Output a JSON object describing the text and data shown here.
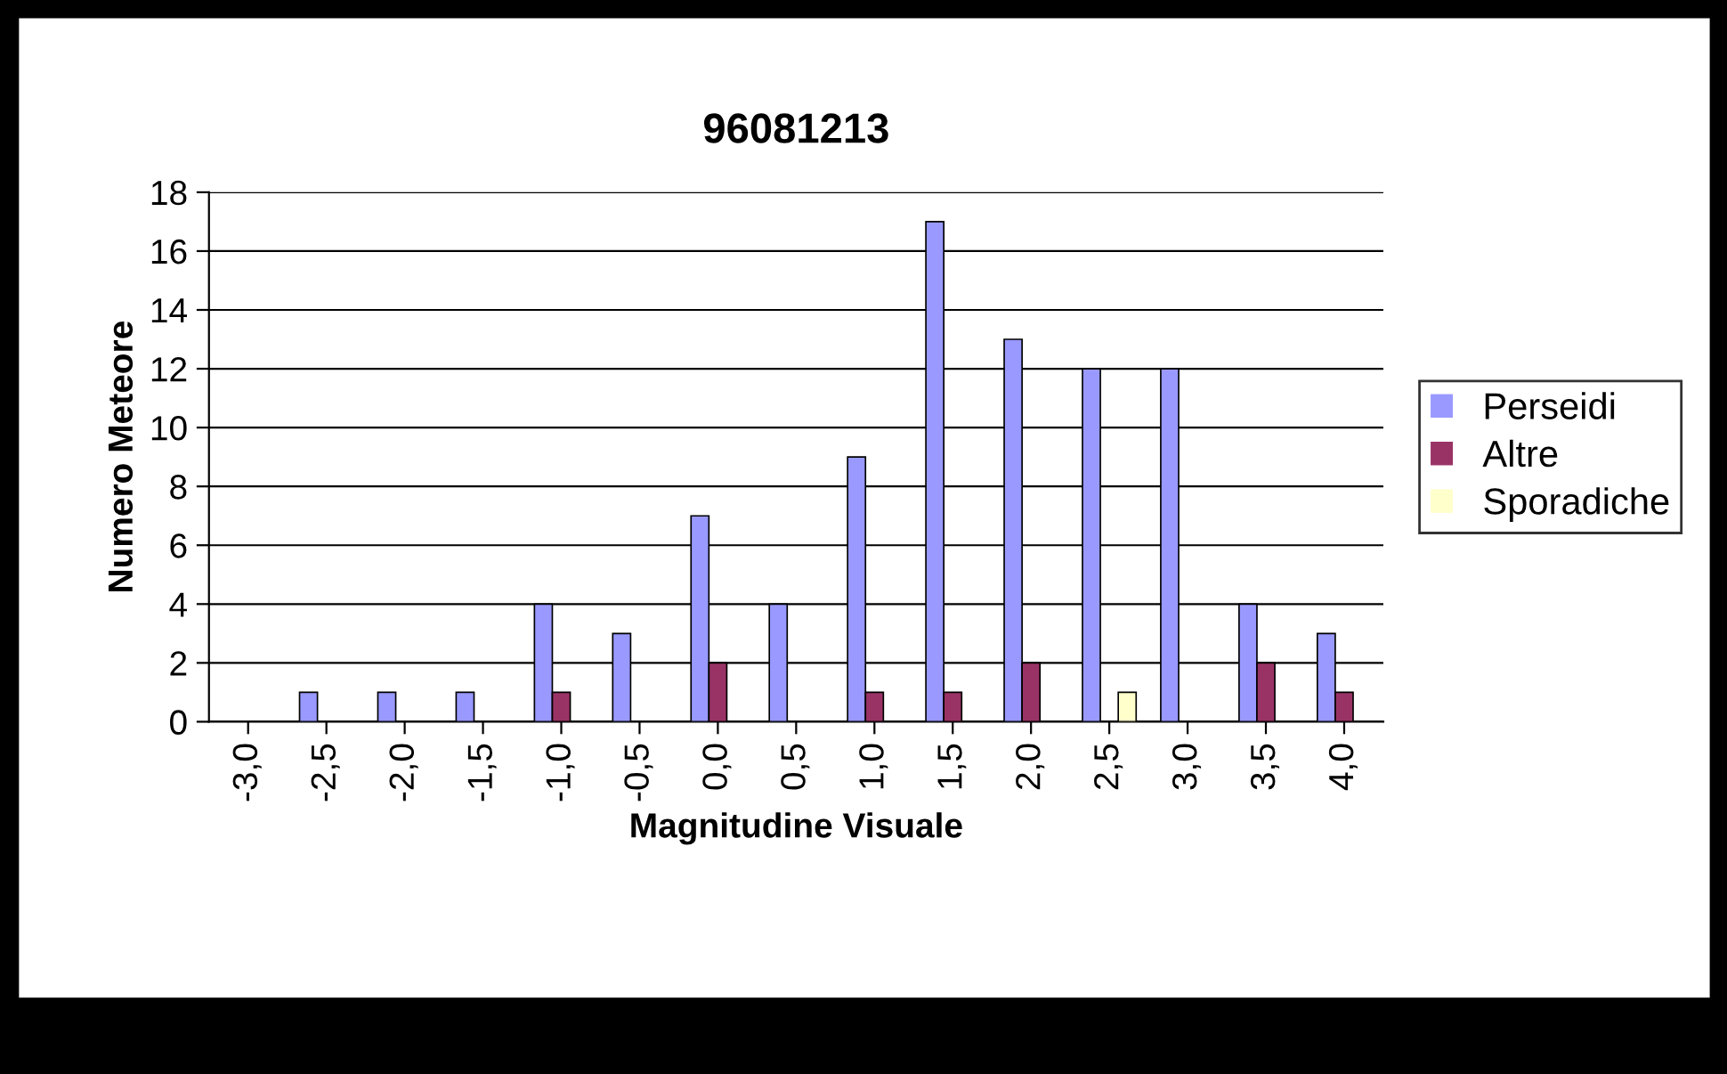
{
  "chart_data": {
    "type": "bar",
    "title": "96081213",
    "xlabel": "Magnitudine Visuale",
    "ylabel": "Numero Meteore",
    "categories": [
      "-3,0",
      "-2,5",
      "-2,0",
      "-1,5",
      "-1,0",
      "-0,5",
      "0,0",
      "0,5",
      "1,0",
      "1,5",
      "2,0",
      "2,5",
      "3,0",
      "3,5",
      "4,0"
    ],
    "series": [
      {
        "name": "Perseidi",
        "color": "#9999ff",
        "values": [
          0,
          1,
          1,
          1,
          4,
          3,
          7,
          4,
          9,
          17,
          13,
          12,
          12,
          4,
          3
        ]
      },
      {
        "name": "Altre",
        "color": "#993366",
        "values": [
          0,
          0,
          0,
          0,
          1,
          0,
          2,
          0,
          1,
          1,
          2,
          0,
          0,
          2,
          1
        ]
      },
      {
        "name": "Sporadiche",
        "color": "#ffffcc",
        "values": [
          0,
          0,
          0,
          0,
          0,
          0,
          0,
          0,
          0,
          0,
          0,
          1,
          0,
          0,
          0
        ]
      }
    ],
    "ylim": [
      0,
      18
    ],
    "yticks": [
      0,
      2,
      4,
      6,
      8,
      10,
      12,
      14,
      16,
      18
    ],
    "grid": "y",
    "legend": "right"
  }
}
